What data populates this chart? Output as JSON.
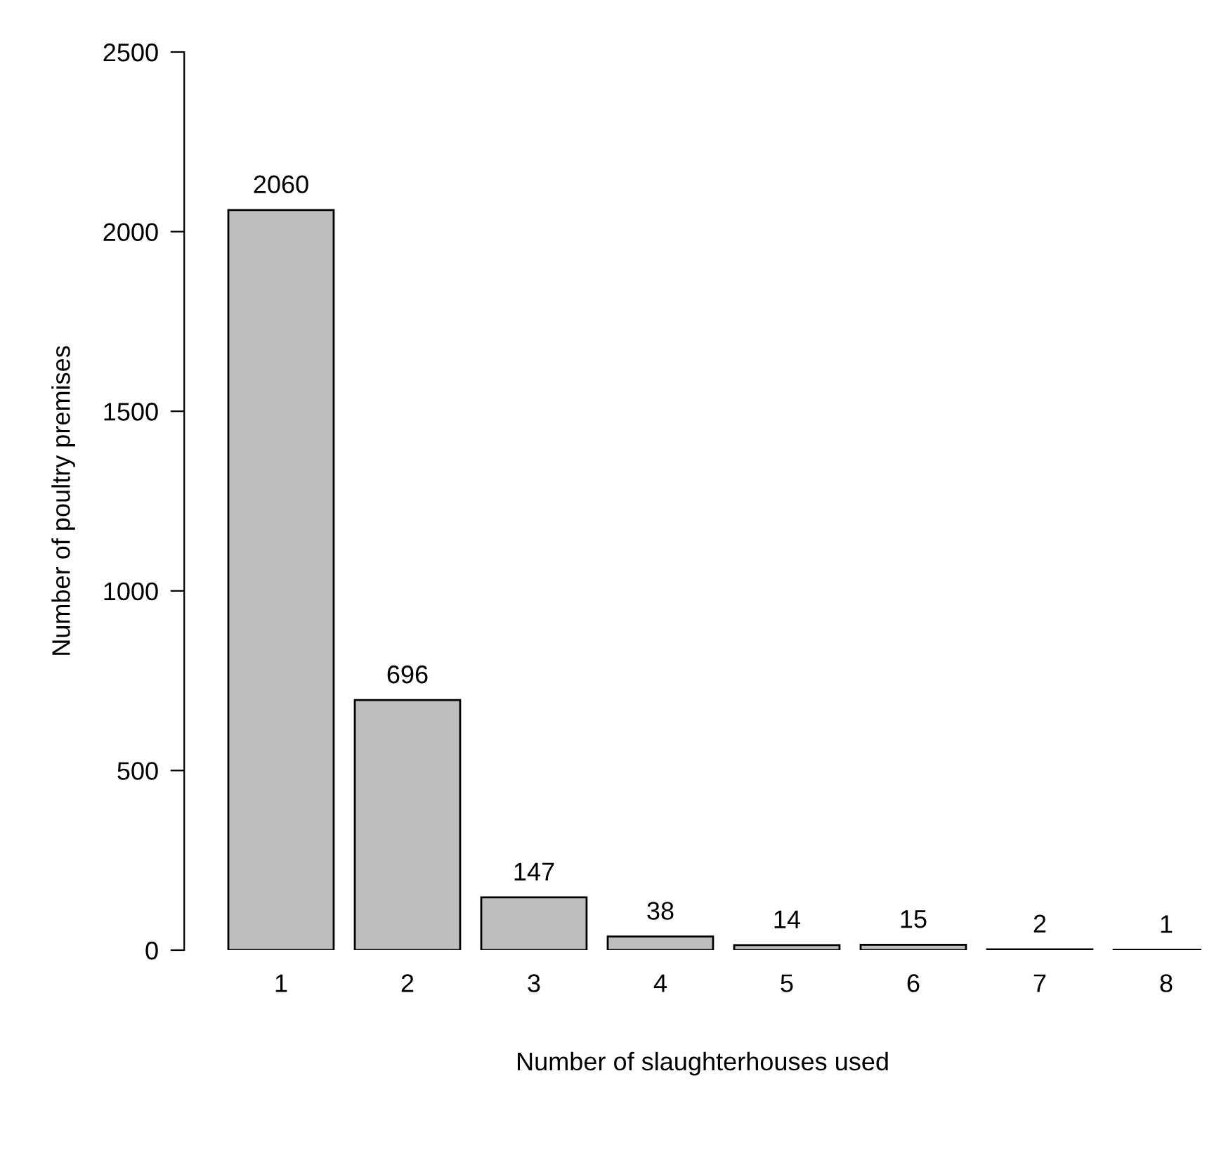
{
  "chart_data": {
    "type": "bar",
    "xlabel": "Number of slaughterhouses used",
    "ylabel": "Number of poultry premises",
    "categories": [
      "1",
      "2",
      "3",
      "4",
      "5",
      "6",
      "7",
      "8"
    ],
    "values": [
      2060,
      696,
      147,
      38,
      14,
      15,
      2,
      1
    ],
    "color": "#bebebe",
    "ylim": [
      0,
      2500
    ],
    "yticks": [
      0,
      500,
      1000,
      1500,
      2000,
      2500
    ],
    "data_labels": true,
    "grid": false
  }
}
